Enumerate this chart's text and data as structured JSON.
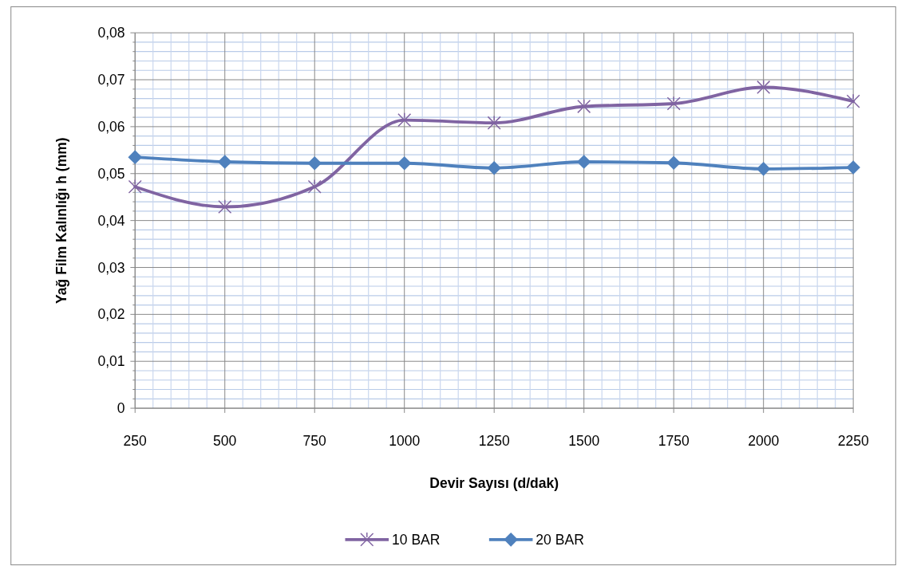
{
  "chart_data": {
    "type": "line",
    "xlabel": "Devir Sayısı (d/dak)",
    "ylabel": "Yağ Film Kalınlığı h  (mm)",
    "categories": [
      "250",
      "500",
      "750",
      "1000",
      "1250",
      "1500",
      "1750",
      "2000",
      "2250"
    ],
    "series": [
      {
        "name": "10 BAR",
        "color": "#8064a2",
        "marker": "cross",
        "values": [
          0.0472,
          0.0429,
          0.0472,
          0.0614,
          0.0608,
          0.0643,
          0.0649,
          0.0684,
          0.0654
        ]
      },
      {
        "name": "20 BAR",
        "color": "#4f81bd",
        "marker": "diamond",
        "values": [
          0.0535,
          0.0525,
          0.0522,
          0.0522,
          0.0512,
          0.0525,
          0.0523,
          0.051,
          0.0513
        ]
      }
    ],
    "ylim": [
      0,
      0.08
    ],
    "yticks": [
      0,
      {
        "value": 0.002,
        "label": null
      },
      {
        "value": 0.004,
        "label": null
      },
      {
        "value": 0.006,
        "label": null
      },
      {
        "value": 0.008,
        "label": null
      },
      {
        "value": 0.01,
        "label": "0,01"
      },
      {
        "value": 0.012,
        "label": null
      },
      {
        "value": 0.014,
        "label": null
      },
      {
        "value": 0.016,
        "label": null
      },
      {
        "value": 0.018,
        "label": null
      },
      {
        "value": 0.02,
        "label": "0,02"
      },
      {
        "value": 0.022,
        "label": null
      },
      {
        "value": 0.024,
        "label": null
      },
      {
        "value": 0.026,
        "label": null
      },
      {
        "value": 0.028,
        "label": null
      },
      {
        "value": 0.03,
        "label": "0,03"
      },
      {
        "value": 0.032,
        "label": null
      },
      {
        "value": 0.034,
        "label": null
      },
      {
        "value": 0.036,
        "label": null
      },
      {
        "value": 0.038,
        "label": null
      },
      {
        "value": 0.04,
        "label": "0,04"
      },
      {
        "value": 0.042,
        "label": null
      },
      {
        "value": 0.044,
        "label": null
      },
      {
        "value": 0.046,
        "label": null
      },
      {
        "value": 0.048,
        "label": null
      },
      {
        "value": 0.05,
        "label": "0,05"
      },
      {
        "value": 0.052,
        "label": null
      },
      {
        "value": 0.054,
        "label": null
      },
      {
        "value": 0.056,
        "label": null
      },
      {
        "value": 0.058,
        "label": null
      },
      {
        "value": 0.06,
        "label": "0,06"
      },
      {
        "value": 0.062,
        "label": null
      },
      {
        "value": 0.064,
        "label": null
      },
      {
        "value": 0.066,
        "label": null
      },
      {
        "value": 0.068,
        "label": null
      },
      {
        "value": 0.07,
        "label": "0,07"
      },
      {
        "value": 0.072,
        "label": null
      },
      {
        "value": 0.074,
        "label": null
      },
      {
        "value": 0.076,
        "label": null
      },
      {
        "value": 0.078,
        "label": null
      },
      {
        "value": 0.08,
        "label": "0,08"
      }
    ],
    "grid": true,
    "legend": "bottom",
    "line_style": "solid"
  }
}
